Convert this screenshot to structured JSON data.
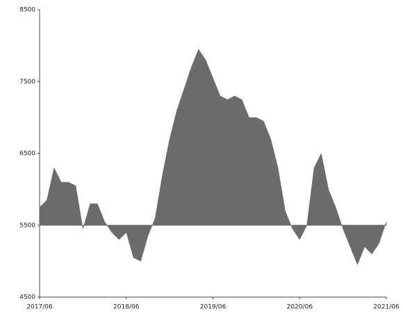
{
  "chart_data": {
    "type": "area",
    "x": [
      "2017/06",
      "2017/07",
      "2017/08",
      "2017/09",
      "2017/10",
      "2017/11",
      "2017/12",
      "2018/01",
      "2018/02",
      "2018/03",
      "2018/04",
      "2018/05",
      "2018/06",
      "2018/07",
      "2018/08",
      "2018/09",
      "2018/10",
      "2018/11",
      "2018/12",
      "2019/01",
      "2019/02",
      "2019/03",
      "2019/04",
      "2019/05",
      "2019/06",
      "2019/07",
      "2019/08",
      "2019/09",
      "2019/10",
      "2019/11",
      "2019/12",
      "2020/01",
      "2020/02",
      "2020/03",
      "2020/04",
      "2020/05",
      "2020/06",
      "2020/07",
      "2020/08",
      "2020/09",
      "2020/10",
      "2020/11",
      "2020/12",
      "2021/01",
      "2021/02",
      "2021/03",
      "2021/04",
      "2021/05",
      "2021/06"
    ],
    "values": [
      5750,
      5850,
      6300,
      6100,
      6100,
      6050,
      5450,
      5800,
      5800,
      5550,
      5400,
      5300,
      5400,
      5050,
      5000,
      5350,
      5600,
      6200,
      6700,
      7100,
      7400,
      7700,
      7950,
      7800,
      7550,
      7300,
      7250,
      7300,
      7250,
      7000,
      7000,
      6950,
      6700,
      6300,
      5700,
      5450,
      5300,
      5500,
      6300,
      6500,
      6000,
      5750,
      5450,
      5200,
      4950,
      5200,
      5100,
      5250,
      5550
    ],
    "color": "#6b6b6b",
    "baseline": 5500,
    "ylim": [
      4500,
      8500
    ],
    "yticks": [
      4500,
      5500,
      6500,
      7500,
      8500
    ],
    "xticks": [
      "2017/06",
      "2018/06",
      "2019/06",
      "2020/06",
      "2021/06"
    ]
  }
}
